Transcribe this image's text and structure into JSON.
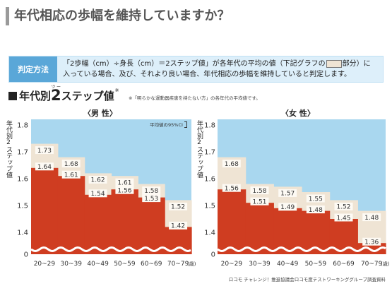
{
  "title": "年代相応の歩幅を維持していますか？",
  "method": {
    "label": "判定方法",
    "line1_before": "「2歩幅（cm）÷身長（cm）＝2ステップ値」が各年代の平均の値（下記グラフの",
    "line1_after": "部分）に",
    "line2": "入っている場合、及び、それより良い場合、年代相応の歩幅を維持していると判定します。"
  },
  "section": {
    "heading_before": "年代別",
    "heading_num": "2",
    "heading_ruby": "ツー",
    "heading_after": "ステップ値",
    "heading_note": "※",
    "footnote": "※「明らかな運動器疾患を持たない方」の各年代の平均値です。"
  },
  "ci_note": "平均値の95%CI",
  "source": "ロコモ チャレンジ！推進協議会ロコモ度テストワーキンググループ調査資料",
  "colors": {
    "method_label": "#5aa7d8",
    "sky": "#a9d7ef",
    "band": "#efe4d4",
    "mean": "#cf3d21"
  },
  "chart_data": [
    {
      "type": "area",
      "title": "〈男 性〉",
      "ylabel": "年代別2ステップ値",
      "categories": [
        "20~29",
        "30~39",
        "40~49",
        "50~59",
        "60~69",
        "70~79"
      ],
      "x_unit": "(歳)",
      "yticks": [
        0,
        1.4,
        1.5,
        1.6,
        1.7,
        1.8
      ],
      "ylim": [
        0,
        1.8
      ],
      "axis_break": true,
      "grid": false,
      "ci_upper": [
        1.73,
        1.68,
        1.62,
        1.61,
        1.58,
        1.52
      ],
      "ci_lower": [
        1.64,
        1.61,
        1.54,
        1.56,
        1.53,
        1.42
      ]
    },
    {
      "type": "area",
      "title": "〈女 性〉",
      "ylabel": "年代別2ステップ値",
      "categories": [
        "20~29",
        "30~39",
        "40~49",
        "50~59",
        "60~69",
        "70~79"
      ],
      "x_unit": "(歳)",
      "yticks": [
        0,
        1.4,
        1.5,
        1.6,
        1.7,
        1.8
      ],
      "ylim": [
        0,
        1.8
      ],
      "axis_break": true,
      "grid": false,
      "ci_upper": [
        1.68,
        1.58,
        1.57,
        1.55,
        1.52,
        1.48
      ],
      "ci_lower": [
        1.56,
        1.51,
        1.49,
        1.48,
        1.45,
        1.36
      ]
    }
  ]
}
